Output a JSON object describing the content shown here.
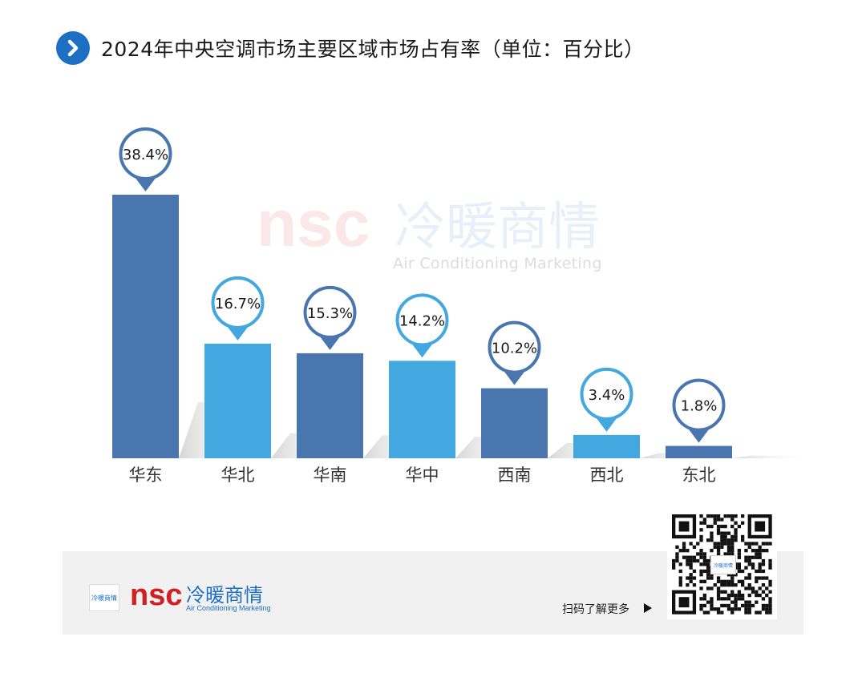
{
  "title": "2024年中央空调市场主要区域市场占有率（单位：百分比）",
  "brand": {
    "logo_latin": "nsc",
    "logo_cn": "冷暖商情",
    "tagline": "Air Conditioning Marketing",
    "badge_text": "冷暖商情"
  },
  "footer": {
    "cta": "扫码了解更多"
  },
  "colors": {
    "dark_bar": "#4a76b0",
    "light_bar": "#44a8e0",
    "brand_red": "#d21f24",
    "brand_blue": "#1d6fc4",
    "footer_bg": "#f1f1f1"
  },
  "chart_data": {
    "type": "bar",
    "title": "2024年中央空调市场主要区域市场占有率（单位：百分比）",
    "categories": [
      "华东",
      "华北",
      "华南",
      "华中",
      "西南",
      "西北",
      "东北"
    ],
    "values": [
      38.4,
      16.7,
      15.3,
      14.2,
      10.2,
      3.4,
      1.8
    ],
    "labels": [
      "38.4%",
      "16.7%",
      "15.3%",
      "14.2%",
      "10.2%",
      "3.4%",
      "1.8%"
    ],
    "bar_colors": [
      "#4a76b0",
      "#44a8e0",
      "#4a76b0",
      "#44a8e0",
      "#4a76b0",
      "#44a8e0",
      "#4a76b0"
    ],
    "ylim": [
      0,
      38.4
    ],
    "grid": false,
    "legend": "none",
    "xlabel": "",
    "ylabel": ""
  }
}
